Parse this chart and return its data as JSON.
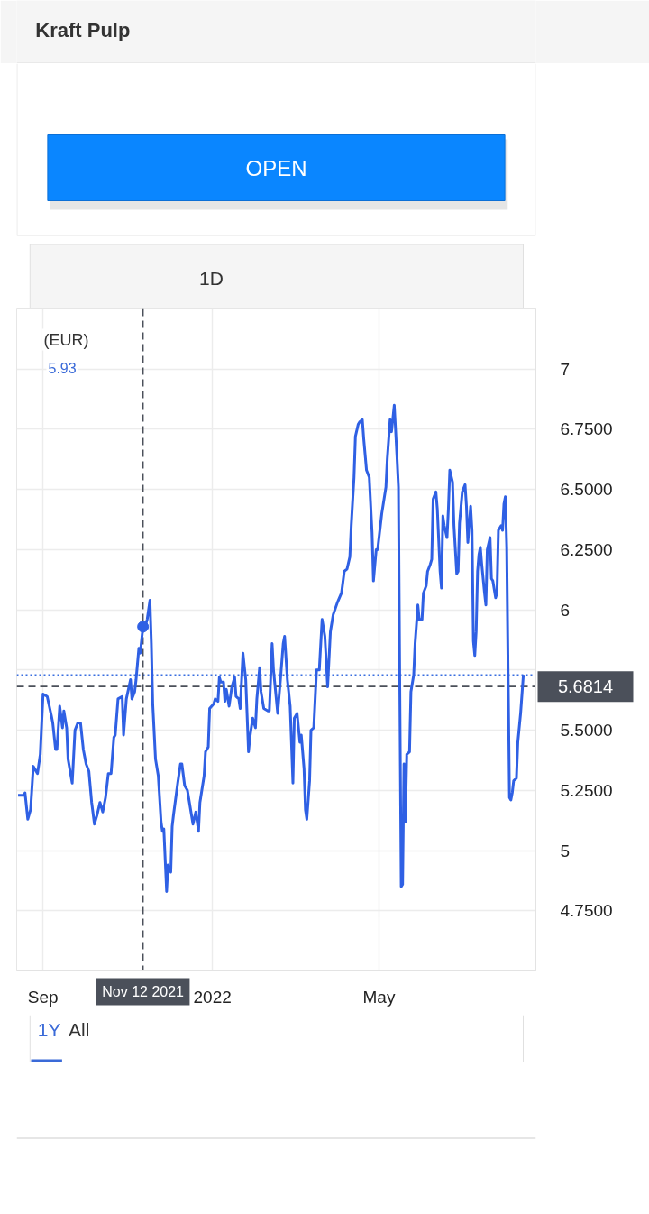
{
  "chart_data": {
    "type": "line",
    "title": "Kraft Pulp",
    "ylabel": "(EUR)",
    "x": [
      "2021-08-14",
      "2021-08-18",
      "2021-08-19",
      "2021-08-21",
      "2021-08-23",
      "2021-08-25",
      "2021-08-28",
      "2021-08-30",
      "2021-09-01",
      "2021-09-04",
      "2021-09-07",
      "2021-09-08",
      "2021-09-10",
      "2021-09-11",
      "2021-09-13",
      "2021-09-15",
      "2021-09-16",
      "2021-09-18",
      "2021-09-19",
      "2021-09-22",
      "2021-09-24",
      "2021-09-26",
      "2021-09-28",
      "2021-09-30",
      "2021-10-02",
      "2021-10-04",
      "2021-10-06",
      "2021-10-08",
      "2021-10-10",
      "2021-10-12",
      "2021-10-14",
      "2021-10-16",
      "2021-10-18",
      "2021-10-20",
      "2021-10-22",
      "2021-10-23",
      "2021-10-25",
      "2021-10-28",
      "2021-10-29",
      "2021-10-31",
      "2021-11-03",
      "2021-11-04",
      "2021-11-06",
      "2021-11-07",
      "2021-11-09",
      "2021-11-10",
      "2021-11-12",
      "2021-11-14",
      "2021-11-15",
      "2021-11-17",
      "2021-11-18",
      "2021-11-19",
      "2021-11-21",
      "2021-11-23",
      "2021-11-25",
      "2021-11-26",
      "2021-11-27",
      "2021-11-29",
      "2021-11-30",
      "2021-12-02",
      "2021-12-03",
      "2021-12-04",
      "2021-12-07",
      "2021-12-09",
      "2021-12-10",
      "2021-12-12",
      "2021-12-14",
      "2021-12-18",
      "2021-12-20",
      "2021-12-22",
      "2021-12-23",
      "2021-12-26",
      "2021-12-27",
      "2021-12-29",
      "2021-12-30",
      "2022-01-02",
      "2022-01-03",
      "2022-01-05",
      "2022-01-06",
      "2022-01-07",
      "2022-01-09",
      "2022-01-10",
      "2022-01-11",
      "2022-01-13",
      "2022-01-15",
      "2022-01-17",
      "2022-01-18",
      "2022-01-20",
      "2022-01-21",
      "2022-01-23",
      "2022-01-25",
      "2022-01-27",
      "2022-01-28",
      "2022-01-30",
      "2022-02-01",
      "2022-02-02",
      "2022-02-04",
      "2022-02-05",
      "2022-02-07",
      "2022-02-10",
      "2022-02-11",
      "2022-02-13",
      "2022-02-14",
      "2022-02-17",
      "2022-02-19",
      "2022-02-21",
      "2022-02-22",
      "2022-02-24",
      "2022-02-26",
      "2022-02-28",
      "2022-03-01",
      "2022-03-03",
      "2022-03-05",
      "2022-03-06",
      "2022-03-08",
      "2022-03-09",
      "2022-03-10",
      "2022-03-12",
      "2022-03-13",
      "2022-03-15",
      "2022-03-17",
      "2022-03-19",
      "2022-03-21",
      "2022-03-23",
      "2022-03-25",
      "2022-03-27",
      "2022-03-29",
      "2022-04-01",
      "2022-04-04",
      "2022-04-06",
      "2022-04-08",
      "2022-04-10",
      "2022-04-11",
      "2022-04-13",
      "2022-04-14",
      "2022-04-16",
      "2022-04-17",
      "2022-04-19",
      "2022-04-20",
      "2022-04-22",
      "2022-04-24",
      "2022-04-26",
      "2022-04-27",
      "2022-04-29",
      "2022-04-30",
      "2022-05-02",
      "2022-05-03",
      "2022-05-06",
      "2022-05-07",
      "2022-05-09",
      "2022-05-10",
      "2022-05-12",
      "2022-05-14",
      "2022-05-15",
      "2022-05-16",
      "2022-05-17",
      "2022-05-18",
      "2022-05-19",
      "2022-05-20",
      "2022-05-21",
      "2022-05-23",
      "2022-05-24",
      "2022-05-26",
      "2022-05-27",
      "2022-05-29",
      "2022-05-30",
      "2022-06-01",
      "2022-06-02",
      "2022-06-04",
      "2022-06-05",
      "2022-06-07",
      "2022-06-08",
      "2022-06-09",
      "2022-06-11",
      "2022-06-12",
      "2022-06-14",
      "2022-06-15",
      "2022-06-16",
      "2022-06-17",
      "2022-06-19",
      "2022-06-20",
      "2022-06-21",
      "2022-06-23",
      "2022-06-24",
      "2022-06-26",
      "2022-06-27",
      "2022-06-28",
      "2022-06-30",
      "2022-07-02",
      "2022-07-03",
      "2022-07-04",
      "2022-07-06",
      "2022-07-07",
      "2022-07-08",
      "2022-07-09",
      "2022-07-10",
      "2022-07-11",
      "2022-07-12",
      "2022-07-13",
      "2022-07-14",
      "2022-07-16",
      "2022-07-17",
      "2022-07-18",
      "2022-07-20",
      "2022-07-21",
      "2022-07-22",
      "2022-07-24",
      "2022-07-25",
      "2022-07-26",
      "2022-07-28",
      "2022-07-29",
      "2022-07-30",
      "2022-07-31",
      "2022-08-01",
      "2022-08-03",
      "2022-08-04",
      "2022-08-05",
      "2022-08-06",
      "2022-08-08",
      "2022-08-09",
      "2022-08-11",
      "2022-08-13"
    ],
    "series": [
      {
        "color": "#2f60e4",
        "values": [
          5.23,
          5.23,
          5.24,
          5.13,
          5.17,
          5.35,
          5.32,
          5.4,
          5.65,
          5.64,
          5.56,
          5.53,
          5.42,
          5.42,
          5.6,
          5.51,
          5.58,
          5.51,
          5.38,
          5.28,
          5.5,
          5.53,
          5.53,
          5.42,
          5.36,
          5.33,
          5.2,
          5.11,
          5.15,
          5.2,
          5.16,
          5.22,
          5.32,
          5.32,
          5.47,
          5.48,
          5.63,
          5.64,
          5.48,
          5.63,
          5.71,
          5.63,
          5.66,
          5.71,
          5.84,
          5.82,
          5.93,
          5.94,
          5.96,
          6.04,
          5.86,
          5.61,
          5.38,
          5.31,
          5.12,
          5.08,
          5.09,
          4.83,
          4.94,
          4.91,
          5.1,
          5.15,
          5.28,
          5.36,
          5.36,
          5.27,
          5.25,
          5.11,
          5.16,
          5.08,
          5.2,
          5.31,
          5.41,
          5.43,
          5.59,
          5.61,
          5.63,
          5.62,
          5.72,
          5.7,
          5.7,
          5.62,
          5.67,
          5.6,
          5.68,
          5.72,
          5.64,
          5.63,
          5.59,
          5.82,
          5.71,
          5.41,
          5.47,
          5.55,
          5.51,
          5.63,
          5.76,
          5.66,
          5.59,
          5.58,
          5.58,
          5.86,
          5.75,
          5.57,
          5.71,
          5.86,
          5.89,
          5.71,
          5.6,
          5.28,
          5.55,
          5.57,
          5.45,
          5.48,
          5.34,
          5.17,
          5.13,
          5.29,
          5.5,
          5.51,
          5.75,
          5.75,
          5.96,
          5.89,
          5.68,
          5.91,
          5.98,
          6.03,
          6.07,
          6.16,
          6.17,
          6.22,
          6.35,
          6.55,
          6.72,
          6.77,
          6.78,
          6.79,
          6.71,
          6.58,
          6.55,
          6.32,
          6.12,
          6.25,
          6.25,
          6.35,
          6.4,
          6.51,
          6.63,
          6.79,
          6.74,
          6.85,
          6.63,
          6.51,
          5.66,
          4.85,
          4.86,
          5.36,
          5.12,
          5.4,
          5.41,
          5.66,
          5.73,
          5.86,
          6.02,
          5.96,
          5.96,
          6.07,
          6.1,
          6.16,
          6.19,
          6.21,
          6.46,
          6.49,
          6.42,
          6.16,
          6.09,
          6.39,
          6.35,
          6.3,
          6.42,
          6.58,
          6.53,
          6.35,
          6.15,
          6.16,
          6.36,
          6.49,
          6.52,
          6.43,
          6.28,
          6.43,
          6.33,
          5.87,
          5.81,
          5.91,
          6.16,
          6.23,
          6.26,
          6.19,
          6.07,
          6.02,
          6.25,
          6.3,
          6.13,
          6.12,
          6.05,
          6.07,
          6.33,
          6.35,
          6.33,
          6.44,
          6.47,
          6.26,
          5.22,
          5.21,
          5.24,
          5.29,
          5.3,
          5.45,
          5.57,
          5.73
        ]
      },
      {
        "type": "scatter",
        "x": [
          "2021-11-12"
        ],
        "color": "#2f60e4",
        "values": [
          5.93
        ],
        "marker": "circle"
      }
    ],
    "xlim": [
      "2021-08-13",
      "2022-08-22"
    ],
    "ylim": [
      4.5,
      7.25
    ],
    "xticks": [
      {
        "value": "2021-09-01",
        "label": "Sep"
      },
      {
        "value": "2022-01-01",
        "label": "2022"
      },
      {
        "value": "2022-05-01",
        "label": "May"
      }
    ],
    "yticks": [
      {
        "value": 4.75,
        "label": "4.7500"
      },
      5,
      {
        "value": 5.25,
        "label": "5.2500"
      },
      {
        "value": 5.5,
        "label": "5.5000"
      },
      {
        "value": 5.75,
        "label": null
      },
      6,
      {
        "value": 6.25,
        "label": "6.2500"
      },
      {
        "value": 6.5,
        "label": "6.5000"
      },
      {
        "value": 6.75,
        "label": "6.7500"
      },
      7
    ],
    "grid": true,
    "ref_lines": [
      {
        "axis": "y",
        "value": 5.73,
        "label": null,
        "color": "#3a6fe0",
        "line_style": "dotted"
      },
      {
        "axis": "x",
        "value": "2021-11-12",
        "label": "Nov 12 2021",
        "color": "#4b505a",
        "line_style": "dashed"
      },
      {
        "axis": "y",
        "value": 5.6814,
        "label": "5.6814",
        "color": "#4b505a",
        "line_style": "dashed"
      }
    ],
    "annotations": [
      "5.93",
      "OPEN",
      "1D",
      "1Y",
      "All"
    ]
  }
}
